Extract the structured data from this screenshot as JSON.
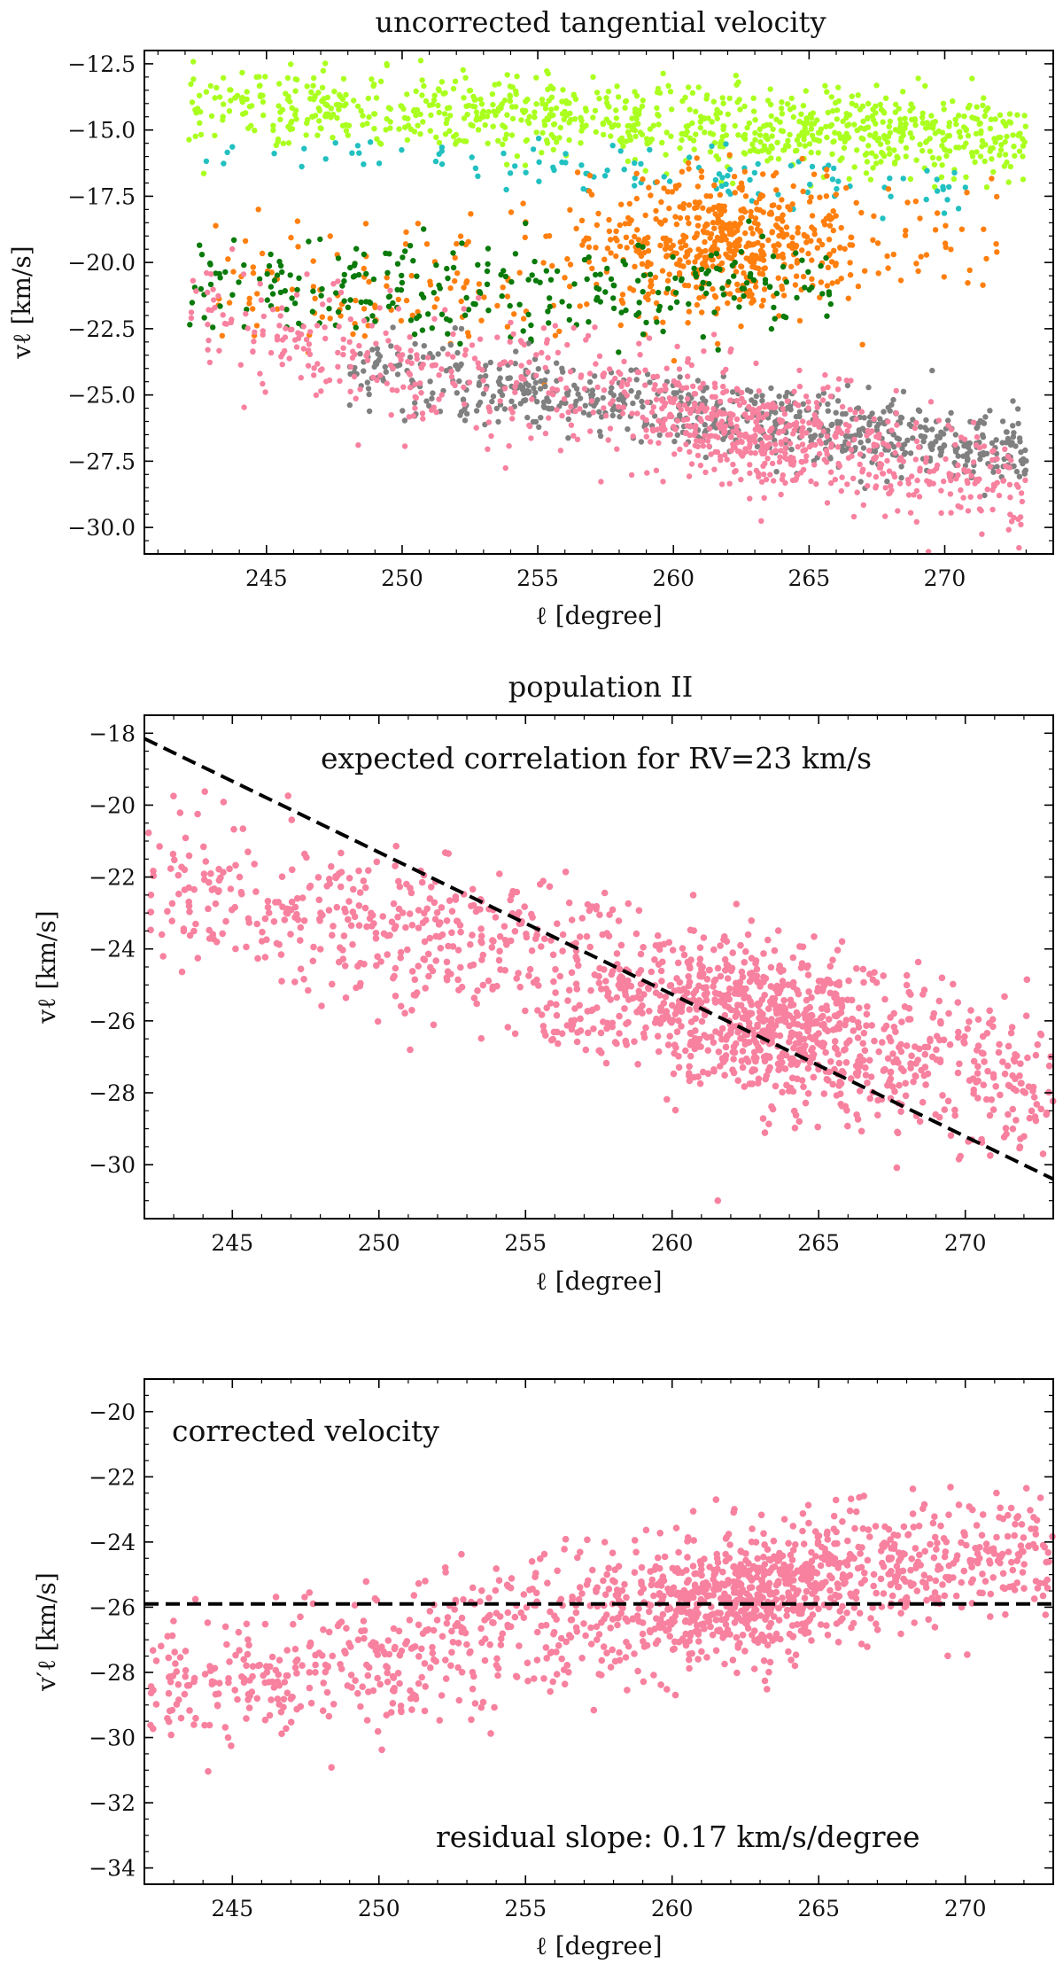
{
  "chart_data": [
    {
      "type": "scatter",
      "title": "uncorrected tangential velocity",
      "xlabel": "ℓ [degree]",
      "ylabel": "vℓ [km/s]",
      "xlim": [
        240.5,
        274.0
      ],
      "ylim": [
        -31.0,
        -12.0
      ],
      "xticks": [
        245,
        250,
        255,
        260,
        265,
        270
      ],
      "xtick_labels": [
        "245",
        "250",
        "255",
        "260",
        "265",
        "270"
      ],
      "yticks": [
        -30.0,
        -27.5,
        -25.0,
        -22.5,
        -20.0,
        -17.5,
        -15.0,
        -12.5
      ],
      "ytick_labels": [
        "−30.0",
        "−27.5",
        "−25.0",
        "−22.5",
        "−20.0",
        "−17.5",
        "−15.0",
        "−12.5"
      ],
      "series": [
        {
          "name": "light green group",
          "color": "#aaff1f",
          "n": 900,
          "x_range": [
            242,
            273
          ],
          "y_start": -14.0,
          "y_end": -15.3,
          "y_spread": 0.75
        },
        {
          "name": "cyan group",
          "color": "#22c0c0",
          "n": 110,
          "x_range": [
            242.5,
            271
          ],
          "y_start": -15.7,
          "y_end": -17.2,
          "y_spread": 0.5
        },
        {
          "name": "orange group",
          "color": "#ff7f0e",
          "n": 700,
          "x_range": [
            243,
            272
          ],
          "y_center_at_262": -19.2,
          "y_spread": 1.2
        },
        {
          "name": "dark green group",
          "color": "#0a7a0a",
          "n": 280,
          "x_range": [
            242,
            266
          ],
          "y_center": -21.0,
          "y_spread": 0.9
        },
        {
          "name": "gray group",
          "color": "#808080",
          "n": 700,
          "x_range": [
            248,
            273
          ],
          "y_start": -24.0,
          "y_end": -27.2,
          "y_spread": 0.7
        },
        {
          "name": "pink group",
          "color": "#f7819f",
          "n": 900,
          "x_range": [
            242,
            273
          ],
          "y_start": -22.2,
          "y_end": -28.3,
          "y_spread": 1.1
        }
      ]
    },
    {
      "type": "scatter",
      "title": "population II",
      "xlabel": "ℓ [degree]",
      "ylabel": "vℓ [km/s]",
      "xlim": [
        242.0,
        273.0
      ],
      "ylim": [
        -31.5,
        -17.5
      ],
      "xticks": [
        245,
        250,
        255,
        260,
        265,
        270
      ],
      "xtick_labels": [
        "245",
        "250",
        "255",
        "260",
        "265",
        "270"
      ],
      "yticks": [
        -30,
        -28,
        -26,
        -24,
        -22,
        -20,
        -18
      ],
      "ytick_labels": [
        "−30",
        "−28",
        "−26",
        "−24",
        "−22",
        "−20",
        "−18"
      ],
      "series": [
        {
          "name": "population II",
          "color": "#f7819f",
          "n": 1400,
          "x_range": [
            242,
            273
          ],
          "y_start": -22.0,
          "y_end": -27.9,
          "y_spread": 1.1
        }
      ],
      "reference_line": {
        "x": [
          242,
          273
        ],
        "y": [
          -18.15,
          -30.4
        ],
        "style": "dashed"
      },
      "annotation": "expected correlation for RV=23 km/s"
    },
    {
      "type": "scatter",
      "title": "",
      "xlabel": "ℓ [degree]",
      "ylabel": "v′ℓ [km/s]",
      "xlim": [
        242.0,
        273.0
      ],
      "ylim": [
        -34.5,
        -19.0
      ],
      "xticks": [
        245,
        250,
        255,
        260,
        265,
        270
      ],
      "xtick_labels": [
        "245",
        "250",
        "255",
        "260",
        "265",
        "270"
      ],
      "yticks": [
        -34,
        -32,
        -30,
        -28,
        -26,
        -24,
        -22,
        -20
      ],
      "ytick_labels": [
        "−34",
        "−32",
        "−30",
        "−28",
        "−26",
        "−24",
        "−22",
        "−20"
      ],
      "series": [
        {
          "name": "corrected population II",
          "color": "#f7819f",
          "n": 1400,
          "x_range": [
            242,
            273
          ],
          "y_start": -28.8,
          "y_end": -23.9,
          "y_spread": 1.0
        }
      ],
      "reference_line": {
        "x": [
          242,
          273
        ],
        "y": [
          -25.9,
          -25.9
        ],
        "style": "dashed"
      },
      "annotation_top": "corrected velocity",
      "annotation_bottom": "residual slope: 0.17 km/s/degree"
    }
  ]
}
